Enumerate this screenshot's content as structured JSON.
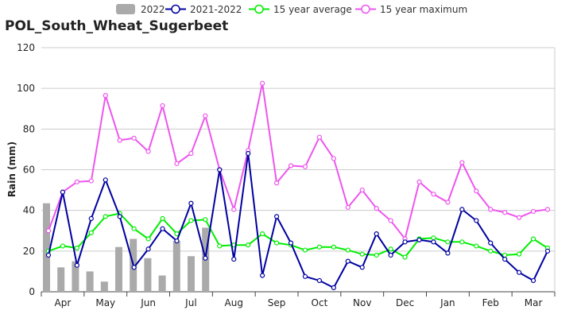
{
  "chart_data": {
    "type": "line",
    "title": "POL_South_Wheat_Sugerbeet",
    "xlabel": "",
    "ylabel": "Rain (mm)",
    "ylim": [
      0,
      120
    ],
    "yticks": [
      0,
      20,
      40,
      60,
      80,
      100,
      120
    ],
    "grid": true,
    "legend_position": "top",
    "month_labels": [
      "Apr",
      "May",
      "Jun",
      "Jul",
      "Aug",
      "Sep",
      "Oct",
      "Nov",
      "Dec",
      "Jan",
      "Feb",
      "Mar"
    ],
    "series": [
      {
        "name": "2022",
        "kind": "bar",
        "color": "#aaaaaa",
        "values": [
          43.5,
          12,
          15,
          10,
          5,
          22,
          26,
          16.5,
          8,
          25,
          17.5,
          31.5
        ]
      },
      {
        "name": "2021-2022",
        "kind": "line",
        "color": "#0000a0",
        "values": [
          18,
          49,
          13,
          36,
          55,
          37,
          12,
          21,
          31,
          25,
          43.5,
          16.5,
          60,
          16,
          68,
          8,
          37,
          24,
          7.5,
          5.5,
          2,
          15,
          12,
          28.5,
          18,
          24.5,
          25.5,
          24.5,
          19,
          40.5,
          35,
          24,
          16,
          9.5,
          5.5,
          20
        ]
      },
      {
        "name": "15 year average",
        "kind": "line",
        "color": "#00ee00",
        "values": [
          20,
          22.5,
          21.5,
          29,
          37,
          38.5,
          31,
          26,
          36,
          28.5,
          35,
          35.5,
          22.5,
          23,
          23,
          28.5,
          24,
          23,
          20.5,
          22,
          22,
          20.5,
          18.5,
          18,
          21,
          17,
          26,
          26.5,
          24.5,
          24.5,
          22.5,
          20,
          18,
          18.5,
          26,
          21.5
        ]
      },
      {
        "name": "15 year maximum",
        "kind": "line",
        "color": "#ee55ee",
        "values": [
          30,
          49,
          54,
          54.5,
          96.5,
          74.5,
          75.5,
          69,
          91.5,
          63,
          68,
          86.5,
          60,
          40.5,
          69.5,
          102.5,
          53.5,
          62,
          61.5,
          76,
          65.5,
          41.5,
          50,
          41,
          35,
          26,
          54,
          48,
          44,
          63.5,
          49.5,
          40.5,
          39,
          36.5,
          39.5,
          40.5
        ]
      }
    ]
  }
}
